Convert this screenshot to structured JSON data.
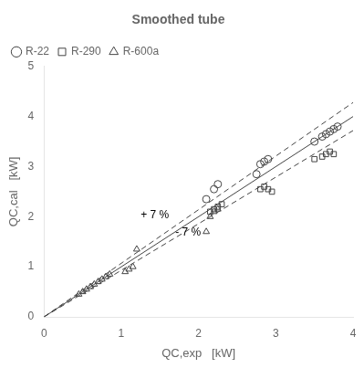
{
  "chart_data": {
    "type": "scatter",
    "title": "Smoothed tube",
    "x_label": "QC,exp   [kW]",
    "y_label": "QC,cal   [kW]",
    "xlim": [
      0,
      4
    ],
    "ylim": [
      0,
      5
    ],
    "xticks": [
      0,
      1,
      2,
      3,
      4
    ],
    "yticks": [
      0,
      1,
      2,
      3,
      4,
      5
    ],
    "grid": false,
    "legend": "upper left",
    "series": [
      {
        "type": "line",
        "line_style": "solid",
        "color": "#444444",
        "x": [
          0,
          4
        ],
        "values": [
          0,
          4
        ]
      },
      {
        "type": "line",
        "line_style": "dashed",
        "color": "#444444",
        "x": [
          0,
          4
        ],
        "values": [
          0,
          4.28
        ]
      },
      {
        "type": "line",
        "line_style": "dashed",
        "color": "#444444",
        "x": [
          0,
          4
        ],
        "values": [
          0,
          3.72
        ]
      },
      {
        "name": "R-22",
        "type": "scatter",
        "marker": "circle",
        "color": "#444444",
        "x": [
          2.1,
          2.2,
          2.25,
          2.75,
          2.8,
          2.85,
          2.9,
          3.5,
          3.6,
          3.65,
          3.7,
          3.75,
          3.8
        ],
        "values": [
          2.35,
          2.55,
          2.65,
          2.85,
          3.05,
          3.1,
          3.15,
          3.5,
          3.6,
          3.65,
          3.7,
          3.75,
          3.8
        ]
      },
      {
        "name": "R-290",
        "type": "scatter",
        "marker": "square",
        "color": "#444444",
        "x": [
          2.15,
          2.2,
          2.25,
          2.3,
          2.8,
          2.85,
          2.9,
          2.95,
          3.5,
          3.6,
          3.65,
          3.7,
          3.75
        ],
        "values": [
          2.1,
          2.15,
          2.2,
          2.25,
          2.55,
          2.6,
          2.55,
          2.5,
          3.15,
          3.2,
          3.25,
          3.3,
          3.25
        ]
      },
      {
        "name": "R-600a",
        "type": "scatter",
        "marker": "triangle",
        "color": "#444444",
        "x": [
          0.45,
          0.5,
          0.55,
          0.6,
          0.65,
          0.7,
          0.75,
          0.8,
          0.85,
          1.05,
          1.1,
          1.15,
          1.2,
          2.1,
          2.15,
          2.2,
          2.25
        ],
        "values": [
          0.45,
          0.5,
          0.55,
          0.6,
          0.65,
          0.7,
          0.75,
          0.8,
          0.85,
          0.9,
          0.95,
          1.0,
          1.35,
          1.7,
          2.0,
          2.1,
          2.15
        ]
      }
    ],
    "annotations": [
      {
        "text": "+ 7 %",
        "x": 1.25,
        "y": 1.92
      },
      {
        "text": "- 7 %",
        "x": 1.7,
        "y": 1.57
      }
    ]
  }
}
